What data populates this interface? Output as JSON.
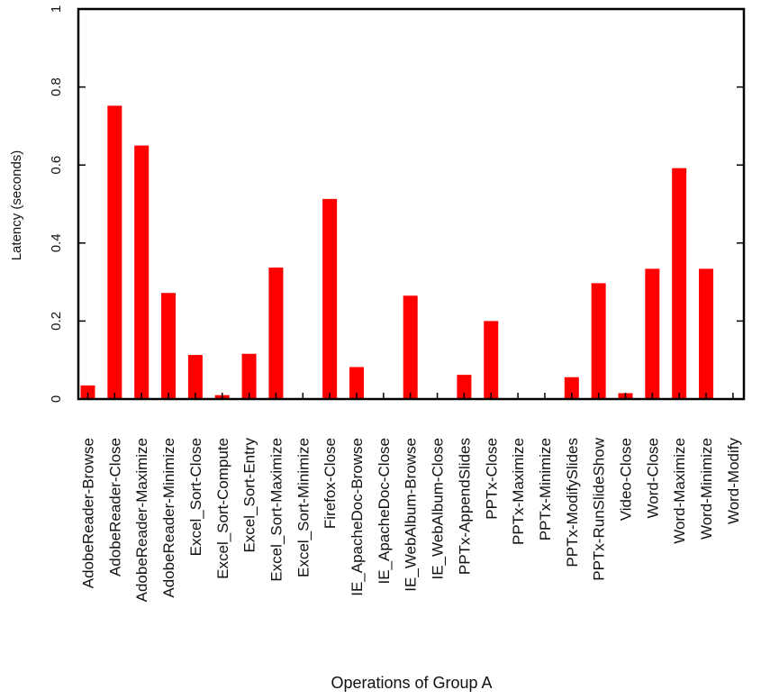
{
  "chart_data": {
    "type": "bar",
    "title": "",
    "xlabel": "Operations of Group A",
    "ylabel": "Latency (seconds)",
    "ylim": [
      0,
      1
    ],
    "yticks": [
      0,
      0.2,
      0.4,
      0.6,
      0.8,
      1
    ],
    "ytick_labels": [
      "0",
      "0.2",
      "0.4",
      "0.6",
      "0.8",
      "1"
    ],
    "grid": false,
    "legend": "none",
    "bar_color": "#ff0000",
    "categories": [
      "AdobeReader-Browse",
      "AdobeReader-Close",
      "AdobeReader-Maximize",
      "AdobeReader-Minimize",
      "Excel_Sort-Close",
      "Excel_Sort-Compute",
      "Excel_Sort-Entry",
      "Excel_Sort-Maximize",
      "Excel_Sort-Minimize",
      "Firefox-Close",
      "IE_ApacheDoc-Browse",
      "IE_ApacheDoc-Close",
      "IE_WebAlbum-Browse",
      "IE_WebAlbum-Close",
      "PPTx-AppendSlides",
      "PPTx-Close",
      "PPTx-Maximize",
      "PPTx-Minimize",
      "PPTx-ModifySlides",
      "PPTx-RunSlideShow",
      "Video-Close",
      "Word-Close",
      "Word-Maximize",
      "Word-Minimize",
      "Word-Modify"
    ],
    "values": [
      0.035,
      0.752,
      0.65,
      0.272,
      0.113,
      0.01,
      0.116,
      0.337,
      0,
      0.513,
      0.082,
      0,
      0.265,
      0,
      0.062,
      0.2,
      0,
      0,
      0.056,
      0.297,
      0.015,
      0.334,
      0.592,
      0.334,
      0
    ]
  }
}
